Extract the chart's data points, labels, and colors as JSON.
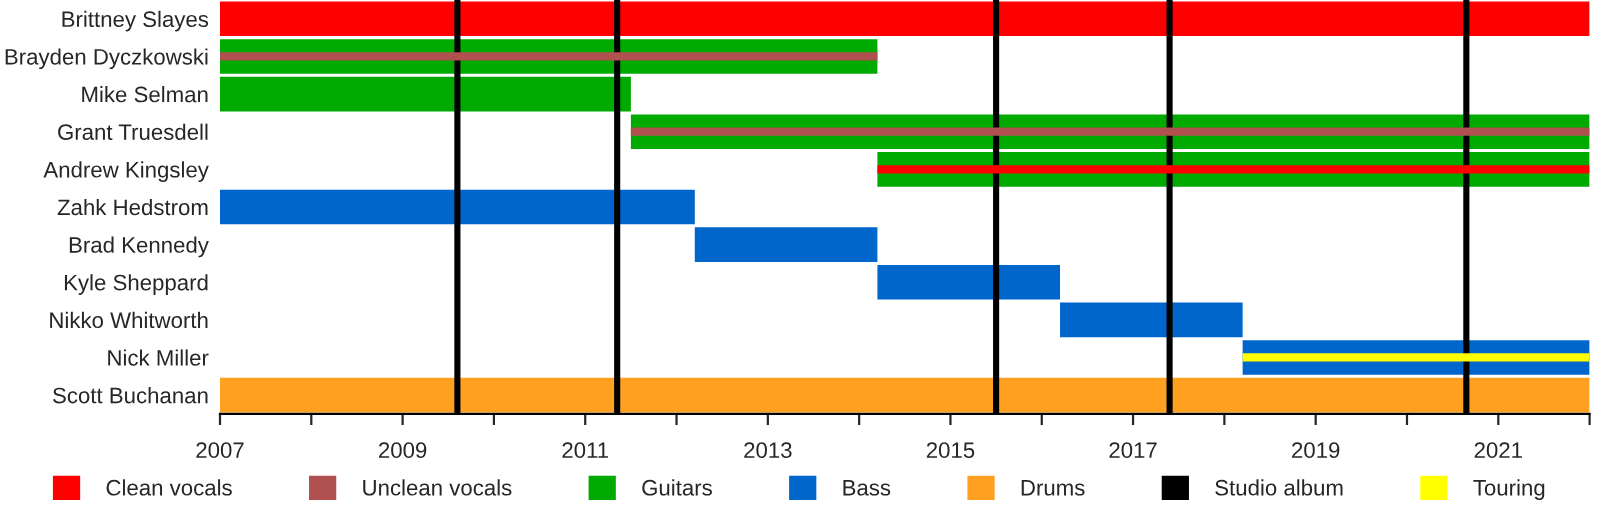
{
  "chart_data": {
    "type": "bar",
    "orientation": "horizontal",
    "categories": [
      "Brittney Slayes",
      "Brayden Dyczkowski",
      "Mike Selman",
      "Grant Truesdell",
      "Andrew Kingsley",
      "Zahk Hedstrom",
      "Brad Kennedy",
      "Kyle Sheppard",
      "Nikko Whitworth",
      "Nick Miller",
      "Scott Buchanan"
    ],
    "series": [
      {
        "name": "Clean vocals",
        "color": "#ff0000",
        "base": [
          2007,
          null,
          null,
          null,
          null,
          null,
          null,
          null,
          null,
          null,
          null
        ],
        "values": [
          15,
          null,
          null,
          null,
          null,
          null,
          null,
          null,
          null,
          null,
          null
        ]
      },
      {
        "name": "Unclean vocals",
        "color": "#b05050",
        "base": [
          null,
          2007,
          null,
          2011.5,
          null,
          null,
          null,
          null,
          null,
          null,
          null
        ],
        "values": [
          null,
          7.2,
          null,
          10.5,
          null,
          null,
          null,
          null,
          null,
          null,
          null
        ]
      },
      {
        "name": "Guitars",
        "color": "#00aa00",
        "base": [
          null,
          2007,
          2007,
          2011.5,
          2014.2,
          null,
          null,
          null,
          null,
          null,
          null
        ],
        "values": [
          null,
          7.2,
          4.5,
          10.5,
          7.8,
          null,
          null,
          null,
          null,
          null,
          null
        ]
      },
      {
        "name": "Bass",
        "color": "#0066cc",
        "base": [
          null,
          null,
          null,
          null,
          null,
          2007,
          2012.2,
          2014.2,
          2016.2,
          2018.2,
          null
        ],
        "values": [
          null,
          null,
          null,
          null,
          null,
          5.2,
          2,
          2,
          2,
          3.8,
          null
        ]
      },
      {
        "name": "Drums",
        "color": "#ffa020",
        "base": [
          null,
          null,
          null,
          null,
          null,
          null,
          null,
          null,
          null,
          null,
          2007
        ],
        "values": [
          null,
          null,
          null,
          null,
          null,
          null,
          null,
          null,
          null,
          null,
          15
        ]
      },
      {
        "name": "Touring",
        "color": "#ffff00",
        "base": [
          null,
          null,
          null,
          null,
          null,
          null,
          null,
          null,
          null,
          2018.2,
          null
        ],
        "values": [
          null,
          null,
          null,
          null,
          null,
          null,
          null,
          null,
          null,
          3.8,
          null
        ]
      },
      {
        "color": "#ff0000",
        "base": [
          null,
          null,
          null,
          null,
          2014.2,
          null,
          null,
          null,
          null,
          null,
          null
        ],
        "values": [
          null,
          null,
          null,
          null,
          7.8,
          null,
          null,
          null,
          null,
          null,
          null
        ]
      }
    ],
    "ref_lines": [
      {
        "axis": "x",
        "value": 2009.6,
        "label": "Studio album",
        "color": "#000000"
      },
      {
        "axis": "x",
        "value": 2011.35,
        "color": "#000000"
      },
      {
        "axis": "x",
        "value": 2015.5,
        "color": "#000000"
      },
      {
        "axis": "x",
        "value": 2017.4,
        "color": "#000000"
      },
      {
        "axis": "x",
        "value": 2020.65,
        "color": "#000000"
      }
    ],
    "xlim": [
      2007,
      2022
    ],
    "xticks": [
      2007,
      {
        "value": 2008,
        "label": null
      },
      2009,
      {
        "value": 2010,
        "label": null
      },
      2011,
      {
        "value": 2012,
        "label": null
      },
      2013,
      {
        "value": 2014,
        "label": null
      },
      2015,
      {
        "value": 2016,
        "label": null
      },
      2017,
      {
        "value": 2018,
        "label": null
      },
      2019,
      {
        "value": 2020,
        "label": null
      },
      2021,
      {
        "value": 2022,
        "label": null
      }
    ],
    "legend": "bottom",
    "grid": false
  }
}
